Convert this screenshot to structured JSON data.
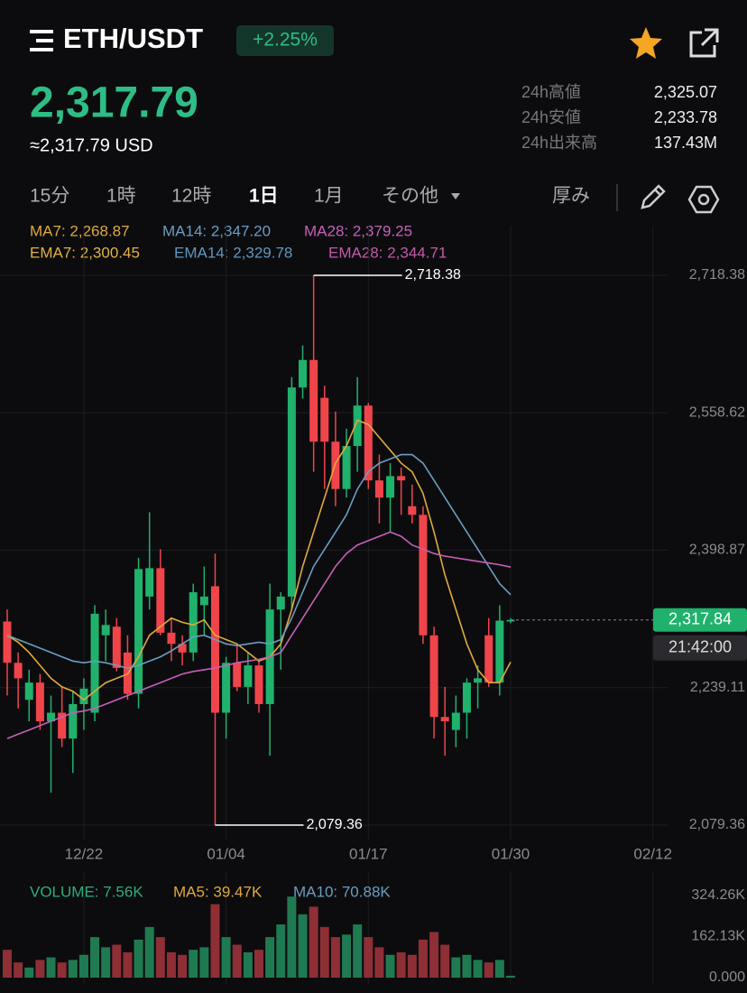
{
  "header": {
    "pair": "ETH/USDT",
    "change": "+2.25%",
    "price": "2,317.79",
    "price_usd": "≈2,317.79 USD",
    "stats": [
      {
        "label": "24h高値",
        "value": "2,325.07"
      },
      {
        "label": "24h安値",
        "value": "2,233.78"
      },
      {
        "label": "24h出来高",
        "value": "137.43M"
      }
    ]
  },
  "tabs": [
    "15分",
    "1時",
    "12時",
    "1日",
    "1月",
    "その他"
  ],
  "active_tab": 3,
  "depth": "厚み",
  "ema_legend": [
    {
      "name": "EMA7: 2,300.45",
      "color": "#e3b13e"
    },
    {
      "name": "EMA14: 2,329.78",
      "color": "#5f97bd"
    },
    {
      "name": "EMA28: 2,344.71",
      "color": "#c35aa8"
    }
  ],
  "chart_data": [
    {
      "type": "candlestick",
      "categories": [
        null,
        null,
        null,
        null,
        null,
        null,
        null,
        "12/22",
        null,
        null,
        null,
        null,
        null,
        null,
        null,
        null,
        null,
        null,
        null,
        null,
        "01/04",
        null,
        null,
        null,
        null,
        null,
        null,
        null,
        null,
        null,
        null,
        null,
        null,
        "01/17",
        null,
        null,
        null,
        null,
        null,
        null,
        null,
        null,
        null,
        null,
        null,
        null,
        "01/30",
        null,
        null,
        null,
        null,
        null,
        null,
        null,
        null,
        null,
        null,
        null,
        null,
        "02/12"
      ],
      "open": [
        2316,
        2268,
        2225,
        2245,
        2200,
        2210,
        2180,
        2220,
        2210,
        2300,
        2310,
        2280,
        2232,
        2345,
        2378,
        2303,
        2290,
        2280,
        2335,
        2357,
        2210,
        2268,
        2240,
        2265,
        2220,
        2330,
        2345,
        2588,
        2620,
        2576,
        2525,
        2470,
        2520,
        2567,
        2480,
        2460,
        2485,
        2450,
        2440,
        2300,
        2205,
        2190,
        2210,
        2245,
        2300,
        2245,
        2316,
        null,
        null,
        null,
        null,
        null,
        null,
        null,
        null,
        null,
        null,
        null,
        null,
        null
      ],
      "high": [
        2330,
        2280,
        2260,
        2255,
        2230,
        2240,
        2235,
        2250,
        2335,
        2330,
        2320,
        2300,
        2390,
        2443,
        2400,
        2320,
        2300,
        2360,
        2380,
        2395,
        2275,
        2290,
        2280,
        2270,
        2360,
        2350,
        2600,
        2637,
        2718.38,
        2590,
        2560,
        2540,
        2600,
        2570,
        2510,
        2500,
        2495,
        2475,
        2450,
        2310,
        2240,
        2230,
        2250,
        2265,
        2320,
        2335,
        2320,
        null,
        null,
        null,
        null,
        null,
        null,
        null,
        null,
        null,
        null,
        null,
        null,
        null
      ],
      "low": [
        2230,
        2215,
        2200,
        2190,
        2117,
        2170,
        2140,
        2190,
        2200,
        2270,
        2258,
        2225,
        2215,
        2330,
        2300,
        2270,
        2265,
        2270,
        2300,
        2079.36,
        2180,
        2235,
        2220,
        2210,
        2160,
        2260,
        2330,
        2575,
        2490,
        2470,
        2450,
        2460,
        2490,
        2470,
        2430,
        2420,
        2440,
        2430,
        2290,
        2180,
        2160,
        2170,
        2180,
        2215,
        2240,
        2230,
        2314,
        null,
        null,
        null,
        null,
        null,
        null,
        null,
        null,
        null,
        null,
        null,
        null,
        null
      ],
      "close": [
        2268,
        2250,
        2245,
        2200,
        2210,
        2180,
        2220,
        2238,
        2325,
        2312,
        2262,
        2232,
        2377,
        2378,
        2303,
        2290,
        2280,
        2350,
        2345,
        2210,
        2268,
        2240,
        2265,
        2220,
        2330,
        2345,
        2588,
        2620,
        2525,
        2525,
        2470,
        2520,
        2567,
        2480,
        2460,
        2485,
        2480,
        2440,
        2300,
        2205,
        2200,
        2210,
        2245,
        2250,
        2245,
        2317,
        2317.84,
        null,
        null,
        null,
        null,
        null,
        null,
        null,
        null,
        null,
        null,
        null,
        null,
        null
      ],
      "up_color": "#20b26c",
      "down_color": "#ef454a",
      "series": [
        {
          "name": "MA7: 2,268.87",
          "color": "#e0a93b",
          "values": [
            2300,
            2292,
            2280,
            2265,
            2250,
            2240,
            2235,
            2225,
            2235,
            2245,
            2250,
            2255,
            2275,
            2300,
            2310,
            2320,
            2315,
            2312,
            2318,
            2300,
            2295,
            2290,
            2280,
            2270,
            2275,
            2290,
            2330,
            2380,
            2420,
            2460,
            2500,
            2520,
            2550,
            2545,
            2530,
            2515,
            2500,
            2490,
            2465,
            2420,
            2370,
            2330,
            2290,
            2260,
            2245,
            2245,
            2268.87,
            null,
            null,
            null,
            null,
            null,
            null,
            null,
            null,
            null,
            null,
            null,
            null,
            null
          ]
        },
        {
          "name": "MA14: 2,347.20",
          "color": "#6a9ec0",
          "values": [
            2300,
            2295,
            2290,
            2285,
            2280,
            2275,
            2270,
            2268,
            2270,
            2268,
            2265,
            2262,
            2265,
            2270,
            2275,
            2282,
            2290,
            2298,
            2300,
            2295,
            2290,
            2288,
            2290,
            2292,
            2290,
            2295,
            2320,
            2350,
            2380,
            2400,
            2420,
            2440,
            2470,
            2490,
            2500,
            2505,
            2510,
            2510,
            2500,
            2480,
            2460,
            2440,
            2420,
            2400,
            2380,
            2360,
            2347.2,
            null,
            null,
            null,
            null,
            null,
            null,
            null,
            null,
            null,
            null,
            null,
            null,
            null
          ]
        },
        {
          "name": "MA28: 2,379.25",
          "color": "#c660b6",
          "values": [
            2180,
            2185,
            2190,
            2195,
            2200,
            2205,
            2210,
            2212,
            2215,
            2220,
            2225,
            2230,
            2235,
            2240,
            2245,
            2250,
            2255,
            2258,
            2260,
            2262,
            2265,
            2268,
            2270,
            2272,
            2275,
            2280,
            2300,
            2320,
            2340,
            2360,
            2380,
            2395,
            2405,
            2410,
            2415,
            2420,
            2415,
            2405,
            2400,
            2395,
            2392,
            2390,
            2388,
            2386,
            2384,
            2382,
            2379.25,
            null,
            null,
            null,
            null,
            null,
            null,
            null,
            null,
            null,
            null,
            null,
            null,
            null
          ]
        }
      ],
      "ylim": [
        2062.6,
        2734.1
      ],
      "yticks": [
        {
          "value": 2079.36,
          "label": "2,079.36"
        },
        {
          "value": 2239.11,
          "label": "2,239.11"
        },
        {
          "value": 2398.87,
          "label": "2,398.87"
        },
        {
          "value": 2558.62,
          "label": "2,558.62"
        },
        {
          "value": 2718.38,
          "label": "2,718.38"
        }
      ],
      "annotations": [
        {
          "value": 2718.38,
          "label": "2,718.38"
        },
        {
          "value": 2079.36,
          "label": "2,079.36"
        }
      ],
      "last_price": {
        "value": 2317.84,
        "label": "2,317.84"
      },
      "countdown": "21:42:00",
      "grid": true
    },
    {
      "type": "bar",
      "legend": [
        {
          "name": "VOLUME: 7.56K",
          "color": "#2eae7a"
        },
        {
          "name": "MA5: 39.47K",
          "color": "#e0a93b"
        },
        {
          "name": "MA10: 70.88K",
          "color": "#6a9ec0"
        }
      ],
      "values": [
        110,
        60,
        40,
        70,
        80,
        60,
        70,
        90,
        160,
        120,
        130,
        100,
        150,
        200,
        160,
        100,
        90,
        110,
        120,
        290,
        160,
        130,
        100,
        110,
        160,
        210,
        320,
        250,
        280,
        200,
        160,
        170,
        210,
        160,
        120,
        90,
        100,
        90,
        150,
        180,
        130,
        80,
        90,
        70,
        60,
        70,
        7.56
      ],
      "ylim": [
        0,
        324.26
      ],
      "yticks": [
        {
          "value": 0,
          "label": "0.000"
        },
        {
          "value": 162.13,
          "label": "162.13K"
        },
        {
          "value": 324.26,
          "label": "324.26K"
        }
      ]
    }
  ]
}
